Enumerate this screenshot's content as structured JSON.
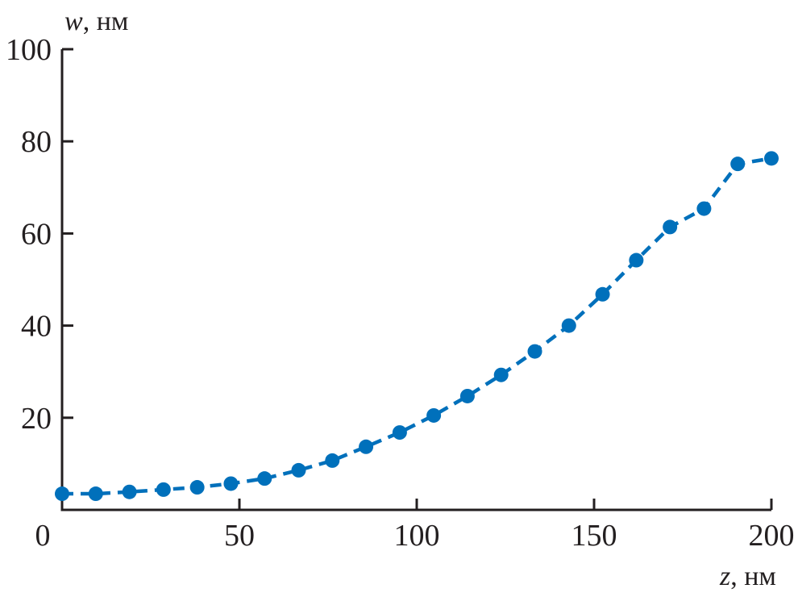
{
  "chart_data": {
    "type": "line",
    "title": "",
    "xlabel_var": "z",
    "xlabel_unit": ", нм",
    "ylabel_var": "w",
    "ylabel_unit": ", нм",
    "xlim": [
      0,
      200
    ],
    "ylim": [
      0,
      100
    ],
    "x_ticks": [
      0,
      50,
      100,
      150,
      200
    ],
    "y_ticks": [
      20,
      40,
      60,
      80,
      100
    ],
    "grid": false,
    "line_style": "dashed",
    "marker": "circle",
    "color": "#0070bb",
    "series": [
      {
        "x": [
          0,
          9.5,
          19.0,
          28.6,
          38.1,
          47.6,
          57.1,
          66.7,
          76.2,
          85.7,
          95.2,
          104.8,
          114.3,
          123.8,
          133.3,
          142.9,
          152.4,
          161.9,
          171.4,
          181.0,
          190.5,
          200
        ],
        "y": [
          3.5,
          3.5,
          3.9,
          4.4,
          4.9,
          5.7,
          6.8,
          8.6,
          10.7,
          13.7,
          16.8,
          20.5,
          24.7,
          29.3,
          34.4,
          40.0,
          46.8,
          54.2,
          61.4,
          65.4,
          75.1,
          76.3
        ]
      }
    ]
  }
}
